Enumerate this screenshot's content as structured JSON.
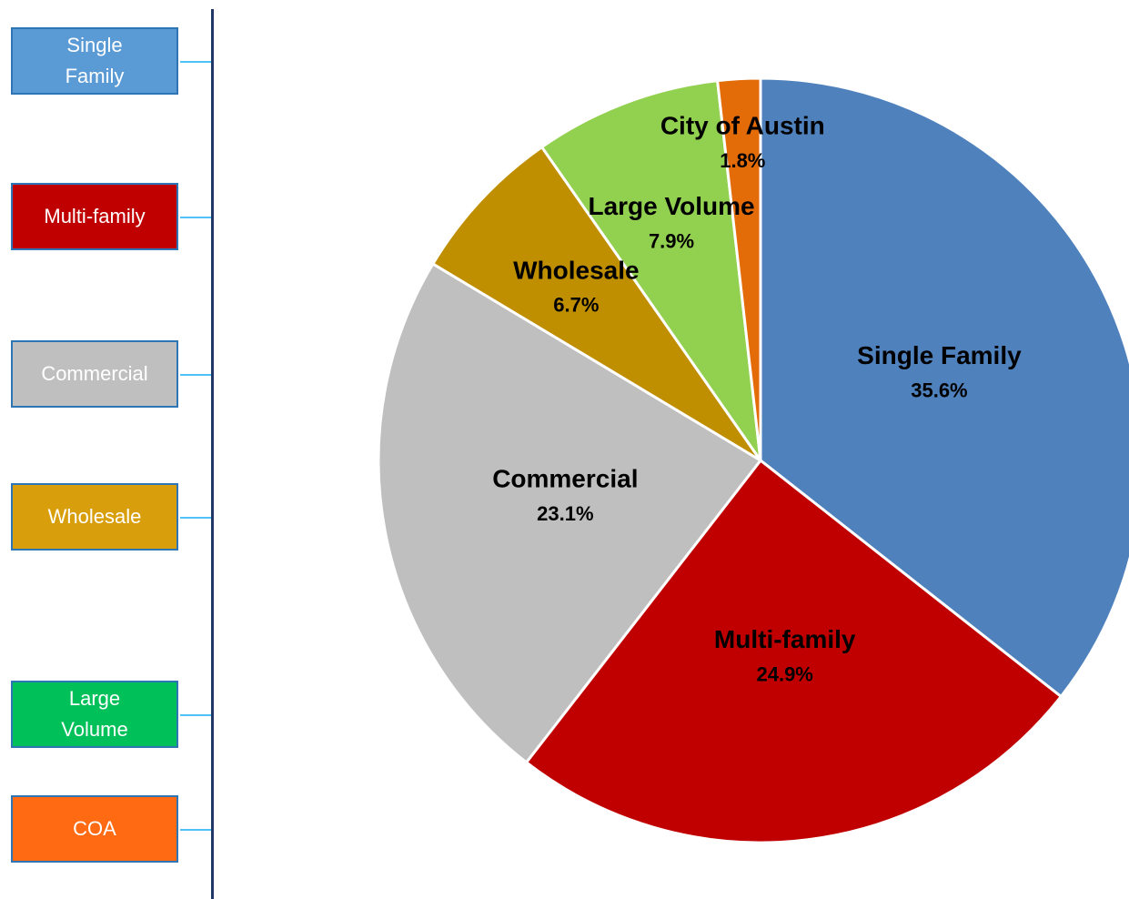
{
  "side_boxes": [
    {
      "label": "Single Family",
      "color": "#5b9bd5"
    },
    {
      "label": "Multi-family",
      "color": "#c00000"
    },
    {
      "label": "Commercial",
      "color": "#bfbfbf"
    },
    {
      "label": "Wholesale",
      "color": "#d99e0b"
    },
    {
      "label": "Large Volume",
      "color": "#00c05a"
    },
    {
      "label": "COA",
      "color": "#ff6a13"
    }
  ],
  "chart_data": {
    "type": "pie",
    "categories": [
      "Single Family",
      "Multi-family",
      "Commercial",
      "Wholesale",
      "Large Volume",
      "City of Austin"
    ],
    "values": [
      35.6,
      24.9,
      23.1,
      6.7,
      7.9,
      1.8
    ],
    "value_labels": [
      "35.6%",
      "24.9%",
      "23.1%",
      "6.7%",
      "7.9%",
      "1.8%"
    ],
    "colors": [
      "#4f81bd",
      "#c00000",
      "#bfbfbf",
      "#bf8f00",
      "#92d050",
      "#e36c09"
    ]
  }
}
